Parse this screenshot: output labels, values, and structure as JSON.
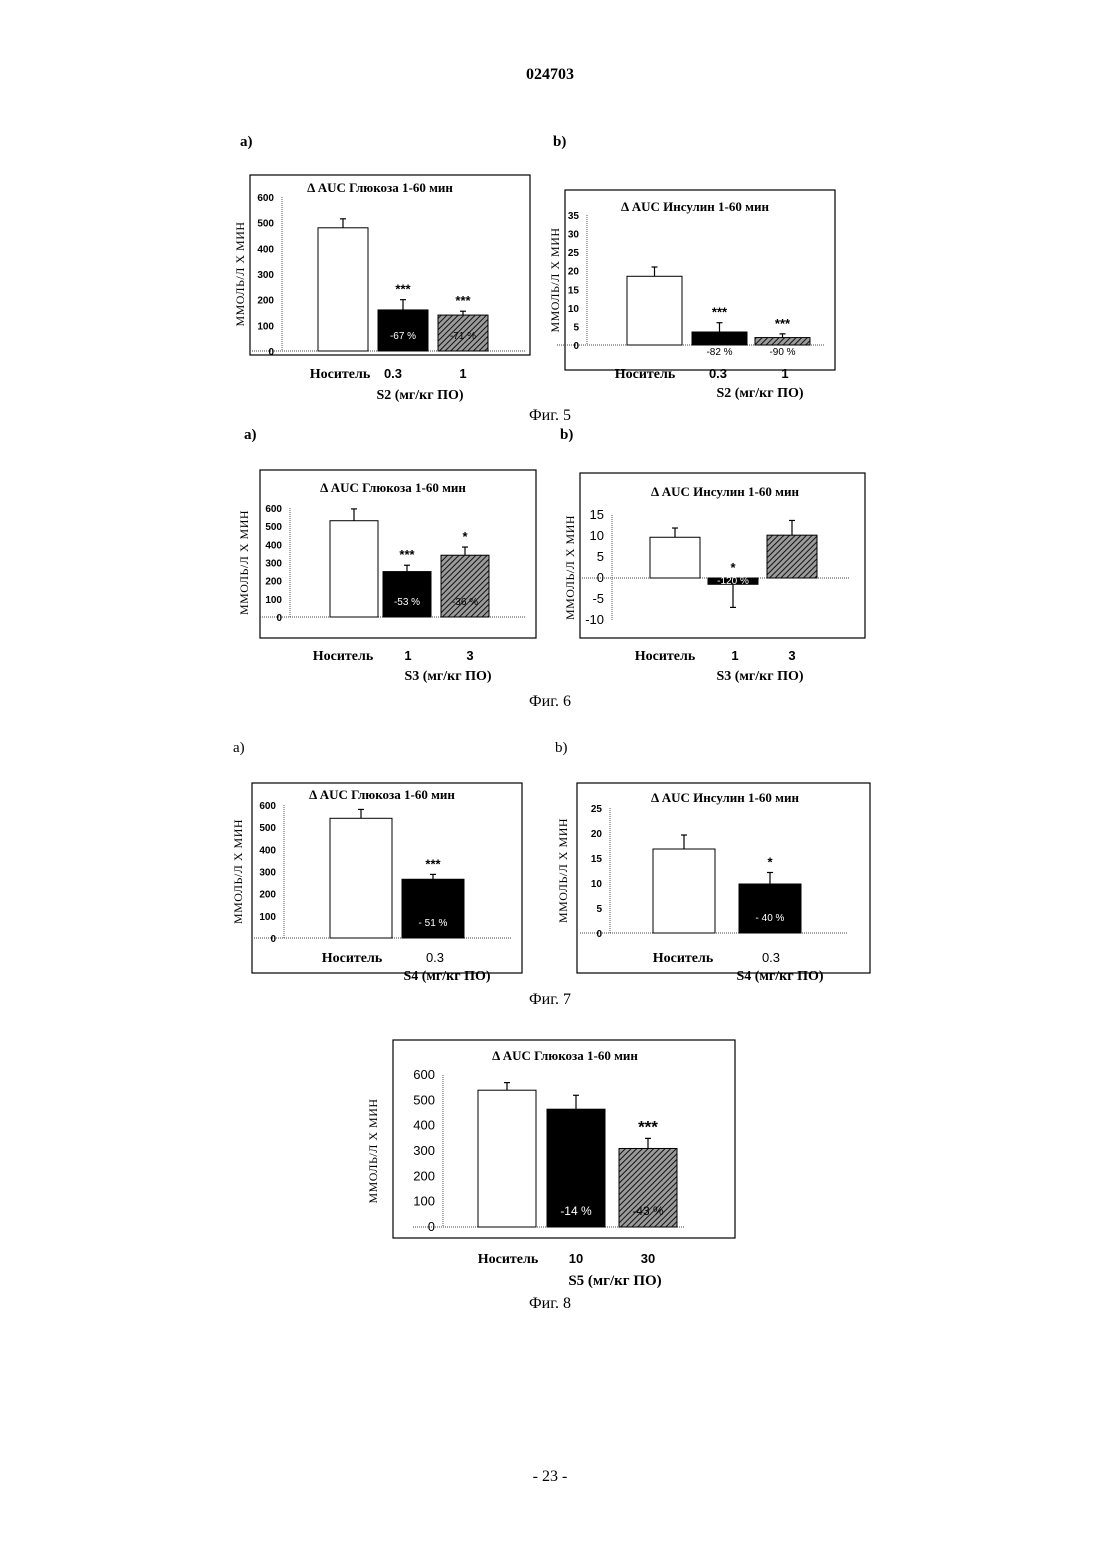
{
  "header": {
    "doc_number": "024703"
  },
  "page": {
    "number": "- 23 -"
  },
  "figures": [
    {
      "caption": "Фиг. 5",
      "panels": [
        "a)",
        "b)"
      ]
    },
    {
      "caption": "Фиг. 6",
      "panels": [
        "a)",
        "b)"
      ]
    },
    {
      "caption": "Фиг. 7",
      "panels": [
        "a)",
        "b)"
      ]
    },
    {
      "caption": "Фиг. 8",
      "panels": []
    }
  ],
  "chart_data": [
    {
      "type": "bar",
      "title": "Δ AUC Глюкоза 1-60 мин",
      "ylabel": "ММОЛЬ/Л Х МИН",
      "categories": [
        "Носитель",
        "0.3",
        "1"
      ],
      "subtitle": "S2 (мг/кг ПО)",
      "values": [
        480,
        160,
        140
      ],
      "errors": [
        35,
        40,
        15
      ],
      "fills": [
        "white",
        "black",
        "hatch"
      ],
      "significance": [
        "",
        "***",
        "***"
      ],
      "percent_labels": [
        "",
        "-67 %",
        "-71 %"
      ],
      "yticks": [
        0,
        100,
        200,
        300,
        400,
        500,
        600
      ],
      "ylim": [
        0,
        600
      ]
    },
    {
      "type": "bar",
      "title": "Δ AUC Инсулин 1-60 мин",
      "ylabel": "ММОЛЬ/Л Х МИН",
      "categories": [
        "Носитель",
        "0.3",
        "1"
      ],
      "subtitle": "S2 (мг/кг ПО)",
      "values": [
        18.5,
        3.5,
        2
      ],
      "errors": [
        2.5,
        2.5,
        1
      ],
      "fills": [
        "white",
        "black",
        "hatch"
      ],
      "significance": [
        "",
        "***",
        "***"
      ],
      "percent_labels": [
        "",
        "-82 %",
        "-90 %"
      ],
      "yticks": [
        0,
        5,
        10,
        15,
        20,
        25,
        30,
        35
      ],
      "ylim": [
        0,
        35
      ]
    },
    {
      "type": "bar",
      "title": "Δ AUC Глюкоза 1-60 мин",
      "ylabel": "ММОЛЬ/Л Х МИН",
      "categories": [
        "Носитель",
        "1",
        "3"
      ],
      "subtitle": "S3 (мг/кг ПО)",
      "values": [
        530,
        250,
        340
      ],
      "errors": [
        65,
        35,
        45
      ],
      "fills": [
        "white",
        "black",
        "hatch"
      ],
      "significance": [
        "",
        "***",
        "*"
      ],
      "percent_labels": [
        "",
        "-53 %",
        "-36 %"
      ],
      "yticks": [
        0,
        100,
        200,
        300,
        400,
        500,
        600
      ],
      "ylim": [
        0,
        600
      ]
    },
    {
      "type": "bar",
      "title": "Δ AUC Инсулин 1-60 мин",
      "ylabel": "ММОЛЬ/Л Х МИН",
      "categories": [
        "Носитель",
        "1",
        "3"
      ],
      "subtitle": "S3 (мг/кг ПО)",
      "values": [
        9.7,
        -1.5,
        10.2
      ],
      "errors": [
        2.2,
        5.5,
        3.5
      ],
      "fills": [
        "white",
        "black",
        "hatch"
      ],
      "significance": [
        "",
        "*",
        ""
      ],
      "percent_labels": [
        "",
        "-120 %",
        ""
      ],
      "yticks": [
        -10,
        -5,
        0,
        5,
        10,
        15
      ],
      "ylim": [
        -10,
        15
      ]
    },
    {
      "type": "bar",
      "title": "Δ AUC Глюкоза 1-60 мин",
      "ylabel": "ММОЛЬ/Л Х МИН",
      "categories": [
        "Носитель",
        "0.3"
      ],
      "subtitle": "S4 (мг/кг ПО)",
      "values": [
        540,
        265
      ],
      "errors": [
        40,
        22
      ],
      "fills": [
        "white",
        "black"
      ],
      "significance": [
        "",
        "***"
      ],
      "percent_labels": [
        "",
        "- 51 %"
      ],
      "yticks": [
        0,
        100,
        200,
        300,
        400,
        500,
        600
      ],
      "ylim": [
        0,
        600
      ]
    },
    {
      "type": "bar",
      "title": "Δ AUC Инсулин 1-60 мин",
      "ylabel": "ММОЛЬ/Л Х МИН",
      "categories": [
        "Носитель",
        "0.3"
      ],
      "subtitle": "S4 (мг/кг ПО)",
      "values": [
        16.8,
        9.8
      ],
      "errors": [
        2.8,
        2.3
      ],
      "fills": [
        "white",
        "black"
      ],
      "significance": [
        "",
        "*"
      ],
      "percent_labels": [
        "",
        "- 40 %"
      ],
      "yticks": [
        0,
        5,
        10,
        15,
        20,
        25
      ],
      "ylim": [
        0,
        25
      ]
    },
    {
      "type": "bar",
      "title": "Δ AUC Глюкоза 1-60 мин",
      "ylabel": "ММОЛЬ/Л Х МИН",
      "categories": [
        "Носитель",
        "10",
        "30"
      ],
      "subtitle": "S5 (мг/кг ПО)",
      "values": [
        540,
        465,
        310
      ],
      "errors": [
        30,
        55,
        40
      ],
      "fills": [
        "white",
        "black",
        "hatch"
      ],
      "significance": [
        "",
        "",
        "***"
      ],
      "percent_labels": [
        "",
        "-14 %",
        "-43 %"
      ],
      "yticks": [
        0,
        100,
        200,
        300,
        400,
        500,
        600
      ],
      "ylim": [
        0,
        600
      ]
    }
  ]
}
